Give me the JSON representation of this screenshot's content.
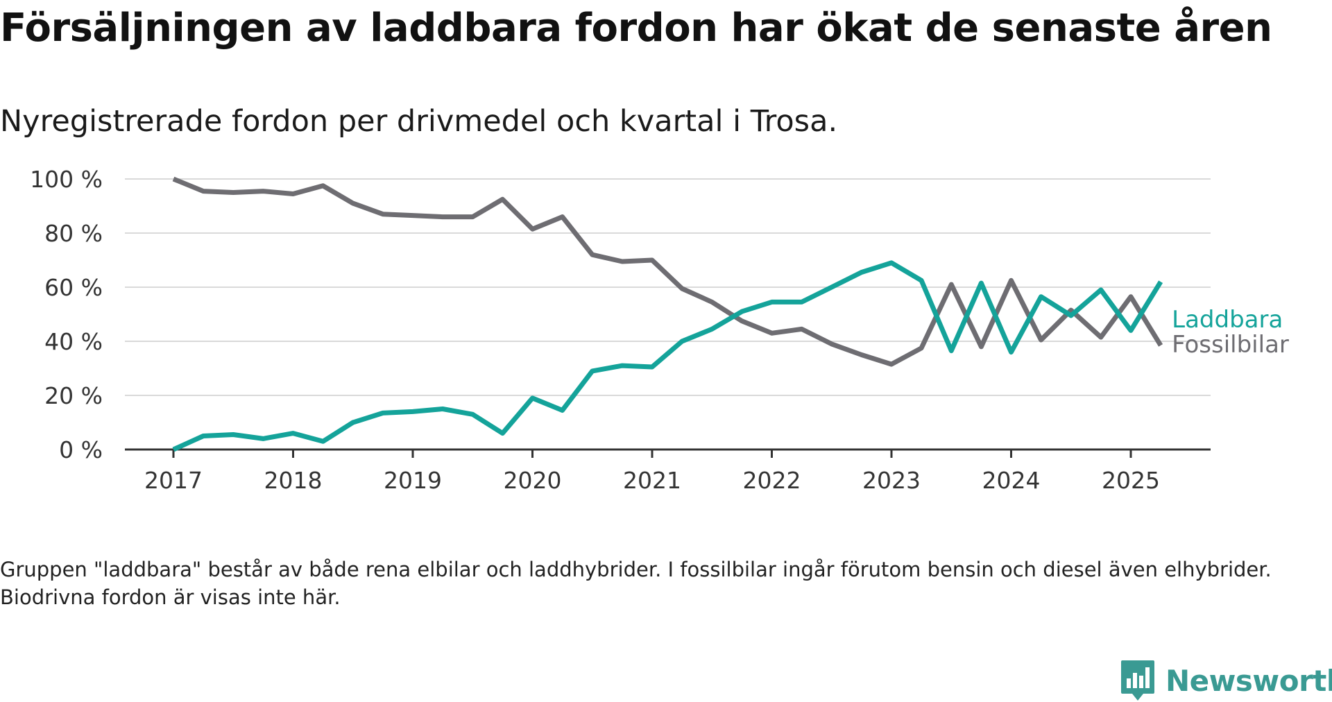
{
  "header": {
    "title": "Försäljningen av laddbara fordon har ökat de senaste åren",
    "subtitle": "Nyregistrerade fordon per drivmedel och kvartal i Trosa."
  },
  "footnote": "Gruppen \"laddbara\" består av både rena elbilar och laddhybrider. I fossilbilar ingår förutom bensin och diesel även elhybrider. Biodrivna fordon är visas inte här.",
  "brand": {
    "name": "Newsworthy",
    "icon": "newsworthy-logo-icon",
    "color": "#3a9a93"
  },
  "chart_data": {
    "type": "line",
    "title": "Försäljningen av laddbara fordon har ökat de senaste åren",
    "subtitle": "Nyregistrerade fordon per drivmedel och kvartal i Trosa.",
    "xlabel": "",
    "ylabel": "",
    "x_ticks": [
      "2017",
      "2018",
      "2019",
      "2020",
      "2021",
      "2022",
      "2023",
      "2024",
      "2025"
    ],
    "y_ticks": [
      "0 %",
      "20 %",
      "40 %",
      "60 %",
      "80 %",
      "100 %"
    ],
    "ylim": [
      0,
      100
    ],
    "xlim": [
      2016.6,
      2025.66
    ],
    "grid": true,
    "legend": "right-inline",
    "x": [
      2017.0,
      2017.25,
      2017.5,
      2017.75,
      2018.0,
      2018.25,
      2018.5,
      2018.75,
      2019.0,
      2019.25,
      2019.5,
      2019.75,
      2020.0,
      2020.25,
      2020.5,
      2020.75,
      2021.0,
      2021.25,
      2021.5,
      2021.75,
      2022.0,
      2022.25,
      2022.5,
      2022.75,
      2023.0,
      2023.25,
      2023.5,
      2023.75,
      2024.0,
      2024.25,
      2024.5,
      2024.75,
      2025.0,
      2025.25
    ],
    "series": [
      {
        "name": "Laddbara",
        "color": "#14a39a",
        "values": [
          0,
          5,
          5.5,
          4,
          6,
          3,
          10,
          13.5,
          14,
          15,
          13,
          6,
          19,
          14.5,
          29,
          31,
          30.5,
          40,
          44.5,
          51,
          54.5,
          54.5,
          60,
          65.5,
          69,
          62.5,
          36.5,
          61.5,
          36,
          56.5,
          49.5,
          59,
          44,
          62
        ]
      },
      {
        "name": "Fossilbilar",
        "color": "#6e6d72",
        "values": [
          100,
          95.5,
          95,
          95.5,
          94.5,
          97.5,
          91,
          87,
          86.5,
          86,
          86,
          92.5,
          81.5,
          86,
          72,
          69.5,
          70,
          59.5,
          54.5,
          47.5,
          43,
          44.5,
          39,
          35,
          31.5,
          37.5,
          61,
          38,
          62.5,
          40.5,
          51.5,
          41.5,
          56.5,
          38.5
        ]
      }
    ]
  }
}
